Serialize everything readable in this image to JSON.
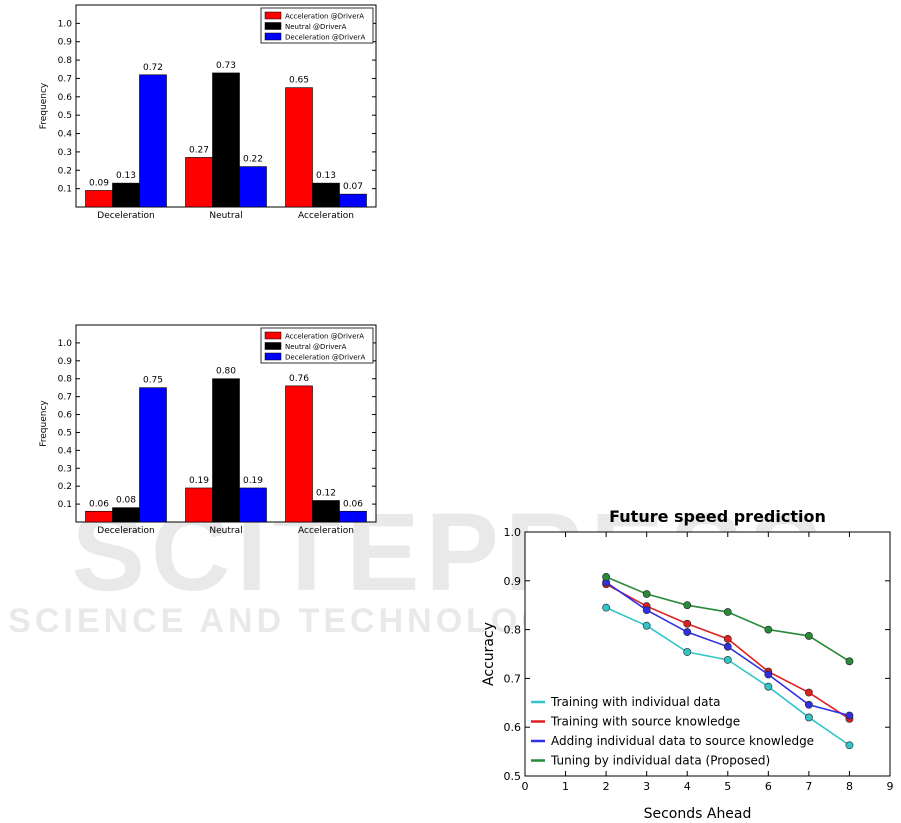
{
  "watermark": {
    "main": "SCITEPRESS",
    "sub": "SCIENCE AND TECHNOLOGY PUBLICATIONS"
  },
  "chart_data": [
    {
      "type": "bar",
      "title": "",
      "xlabel": "",
      "ylabel": "Frequency",
      "ylim": [
        0,
        1.1
      ],
      "yticks": [
        "0.1",
        "0.2",
        "0.3",
        "0.4",
        "0.5",
        "0.6",
        "0.7",
        "0.8",
        "0.9",
        "1.0"
      ],
      "categories": [
        "Deceleration",
        "Neutral",
        "Acceleration"
      ],
      "series": [
        {
          "name": "Acceleration @DriverA",
          "color": "#ff0000",
          "values": [
            0.09,
            0.27,
            0.65
          ],
          "labels": [
            "0.09",
            "0.27",
            "0.65"
          ]
        },
        {
          "name": "Neutral @DriverA",
          "color": "#000000",
          "values": [
            0.13,
            0.73,
            0.13
          ],
          "labels": [
            "0.13",
            "0.73",
            "0.13"
          ]
        },
        {
          "name": "Deceleration @DriverA",
          "color": "#0000ff",
          "values": [
            0.72,
            0.22,
            0.07
          ],
          "labels": [
            "0.72",
            "0.22",
            "0.07"
          ]
        }
      ],
      "legend_position": "top-right"
    },
    {
      "type": "bar",
      "title": "",
      "xlabel": "",
      "ylabel": "Frequency",
      "ylim": [
        0,
        1.1
      ],
      "yticks": [
        "0.1",
        "0.2",
        "0.3",
        "0.4",
        "0.5",
        "0.6",
        "0.7",
        "0.8",
        "0.9",
        "1.0"
      ],
      "categories": [
        "Deceleration",
        "Neutral",
        "Acceleration"
      ],
      "series": [
        {
          "name": "Acceleration @DriverA",
          "color": "#ff0000",
          "values": [
            0.06,
            0.19,
            0.76
          ],
          "labels": [
            "0.06",
            "0.19",
            "0.76"
          ]
        },
        {
          "name": "Neutral @DriverA",
          "color": "#000000",
          "values": [
            0.08,
            0.8,
            0.12
          ],
          "labels": [
            "0.08",
            "0.80",
            "0.12"
          ]
        },
        {
          "name": "Deceleration @DriverA",
          "color": "#0000ff",
          "values": [
            0.75,
            0.19,
            0.06
          ],
          "labels": [
            "0.75",
            "0.19",
            "0.06"
          ]
        }
      ],
      "legend_position": "top-right"
    },
    {
      "type": "line",
      "title": "Future speed prediction",
      "xlabel": "Seconds Ahead",
      "ylabel": "Accuracy",
      "xlim": [
        0,
        9
      ],
      "ylim": [
        0.5,
        1.0
      ],
      "xticks": [
        "0",
        "1",
        "2",
        "3",
        "4",
        "5",
        "6",
        "7",
        "8",
        "9"
      ],
      "yticks": [
        "0.5",
        "0.6",
        "0.7",
        "0.8",
        "0.9",
        "1.0"
      ],
      "x": [
        2,
        3,
        4,
        5,
        6,
        7,
        8
      ],
      "series": [
        {
          "name": "Training with individual data",
          "color": "#33c4c8",
          "values": [
            0.845,
            0.808,
            0.754,
            0.738,
            0.683,
            0.62,
            0.563
          ]
        },
        {
          "name": "Training with source knowledge",
          "color": "#e02020",
          "values": [
            0.893,
            0.848,
            0.812,
            0.781,
            0.714,
            0.671,
            0.617
          ]
        },
        {
          "name": "Adding individual data to source knowledge",
          "color": "#3030e0",
          "values": [
            0.897,
            0.84,
            0.795,
            0.765,
            0.708,
            0.646,
            0.624
          ]
        },
        {
          "name": "Tuning by individual data (Proposed)",
          "color": "#2a8a3a",
          "values": [
            0.908,
            0.873,
            0.85,
            0.836,
            0.8,
            0.787,
            0.735
          ]
        }
      ],
      "legend_position": "bottom-left"
    }
  ]
}
